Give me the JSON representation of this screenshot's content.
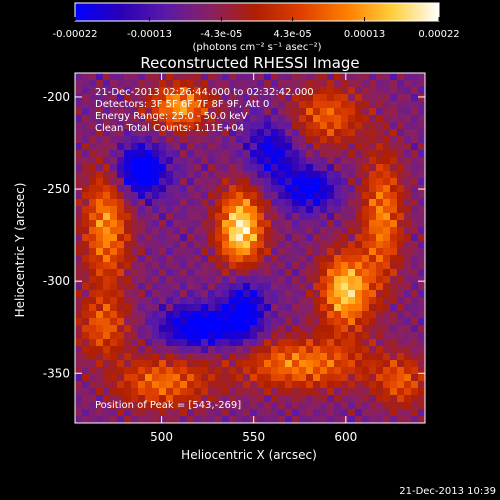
{
  "chart_data": {
    "type": "heatmap",
    "title": "Reconstructed RHESSI Image",
    "xlabel": "Heliocentric X (arcsec)",
    "ylabel": "Heliocentric Y (arcsec)",
    "x_ticks": [
      "500",
      "550",
      "600"
    ],
    "y_ticks": [
      "-200",
      "-250",
      "-300",
      "-350"
    ],
    "x_tick_values": [
      500,
      550,
      600
    ],
    "y_tick_values": [
      -200,
      -250,
      -300,
      -350
    ],
    "xlim": [
      453,
      643
    ],
    "ylim": [
      -377,
      -187
    ],
    "colorbar": {
      "label": "(photons cm⁻² s⁻¹ asec⁻²)",
      "ticks": [
        "-0.00022",
        "-0.00013",
        "-4.3e-05",
        "4.3e-05",
        "0.00013",
        "0.00022"
      ],
      "tick_values": [
        -0.00022,
        -0.00013,
        -4.3e-05,
        4.3e-05,
        0.00013,
        0.00022
      ],
      "range": [
        -0.00022,
        0.00022
      ],
      "stops": [
        "#0000ff",
        "#2a00b8",
        "#5a1aa8",
        "#8a2060",
        "#b02000",
        "#e04000",
        "#ff8000",
        "#ffd040",
        "#ffffff"
      ]
    },
    "annotations": [
      "21-Dec-2013 02:26:44.000 to 02:32:42.000",
      "Detectors: 3F 5F 6F 7F 8F 9F, Att 0",
      "Energy Range: 25.0 - 50.0 keV",
      "Clean    Total Counts: 1.11E+04"
    ],
    "peak_label": "Position of Peak = [543,-269]",
    "peak": [
      543,
      -269
    ],
    "sources": [
      {
        "x": 543,
        "y": -272,
        "amp": 1.0,
        "sx": 9,
        "sy": 16
      },
      {
        "x": 600,
        "y": -305,
        "amp": 0.9,
        "sx": 10,
        "sy": 15
      },
      {
        "x": 510,
        "y": -205,
        "amp": 0.75,
        "sx": 12,
        "sy": 9
      },
      {
        "x": 470,
        "y": -270,
        "amp": 0.7,
        "sx": 9,
        "sy": 24
      },
      {
        "x": 575,
        "y": -345,
        "amp": 0.65,
        "sx": 26,
        "sy": 10
      },
      {
        "x": 620,
        "y": -265,
        "amp": 0.65,
        "sx": 8,
        "sy": 25
      },
      {
        "x": 500,
        "y": -355,
        "amp": 0.6,
        "sx": 18,
        "sy": 10
      },
      {
        "x": 590,
        "y": -210,
        "amp": 0.55,
        "sx": 14,
        "sy": 12
      },
      {
        "x": 468,
        "y": -325,
        "amp": 0.5,
        "sx": 10,
        "sy": 12
      },
      {
        "x": 630,
        "y": -355,
        "amp": 0.5,
        "sx": 10,
        "sy": 10
      },
      {
        "x": 488,
        "y": -240,
        "amp": -0.75,
        "sx": 10,
        "sy": 10
      },
      {
        "x": 520,
        "y": -325,
        "amp": -0.7,
        "sx": 14,
        "sy": 8
      },
      {
        "x": 580,
        "y": -250,
        "amp": -0.6,
        "sx": 10,
        "sy": 8
      },
      {
        "x": 560,
        "y": -230,
        "amp": -0.5,
        "sx": 10,
        "sy": 12
      },
      {
        "x": 545,
        "y": -315,
        "amp": -0.6,
        "sx": 8,
        "sy": 14
      }
    ]
  },
  "timestamp": "21-Dec-2013 10:39"
}
